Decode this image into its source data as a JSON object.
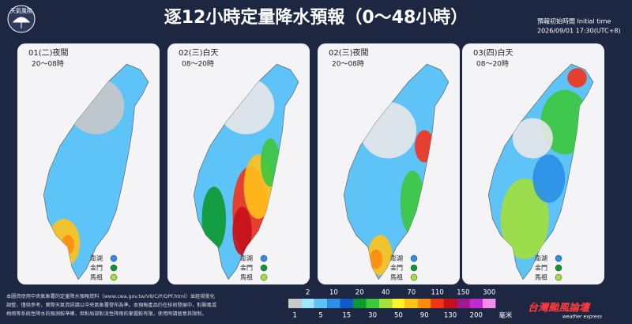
{
  "header": {
    "logo": "天氣風險",
    "title": "逐12小時定量降水預報（0～48小時）",
    "init_label": "預報初始時間 Initial time",
    "init_time": "2026/09/01  17:30(UTC+8)"
  },
  "panels": [
    {
      "date": "01(二)夜間",
      "hours": "20～08時",
      "islands": [
        "澎湖",
        "金門",
        "馬祖"
      ]
    },
    {
      "date": "02(三)白天",
      "hours": "08～20時",
      "islands": [
        "澎湖",
        "金門",
        "馬祖"
      ]
    },
    {
      "date": "02(三)夜間",
      "hours": "20～08時",
      "islands": [
        "澎湖",
        "金門",
        "馬祖"
      ]
    },
    {
      "date": "03(四)白天",
      "hours": "08～20時",
      "islands": [
        "澎湖",
        "金門",
        "馬祖"
      ]
    }
  ],
  "legend": {
    "top_labels": [
      2,
      10,
      20,
      40,
      70,
      110,
      150,
      300
    ],
    "bottom_labels": [
      1,
      5,
      15,
      30,
      50,
      90,
      130,
      200
    ],
    "unit": "毫米",
    "colors": [
      "#c8c8c8",
      "#9ee7ff",
      "#5ec4f7",
      "#2b8fe6",
      "#1559c9",
      "#0b9a2f",
      "#3cc83c",
      "#a3e03a",
      "#fff227",
      "#ffc21a",
      "#ff8c0d",
      "#f43319",
      "#c4111a",
      "#9d1a8f",
      "#c12ad1",
      "#f28ee9"
    ]
  },
  "footer": {
    "lines": [
      "本圖資使用中央氣象署的定量降水預報資料（www.cwa.gov.tw/V8/C/P/QPF.html）並經視覺化",
      "調整，僅供參考，實際天氣資訊請以中央氣象署發布為準。本預報產品仍在技術發展中，對颱風或",
      "梅雨等系統性降水的預測較準確，但對局部對流性降雨的掌握較有限，使用時請留意其限制。"
    ],
    "brand": "台灣颱風論壇",
    "brand_sub": "weather express"
  }
}
